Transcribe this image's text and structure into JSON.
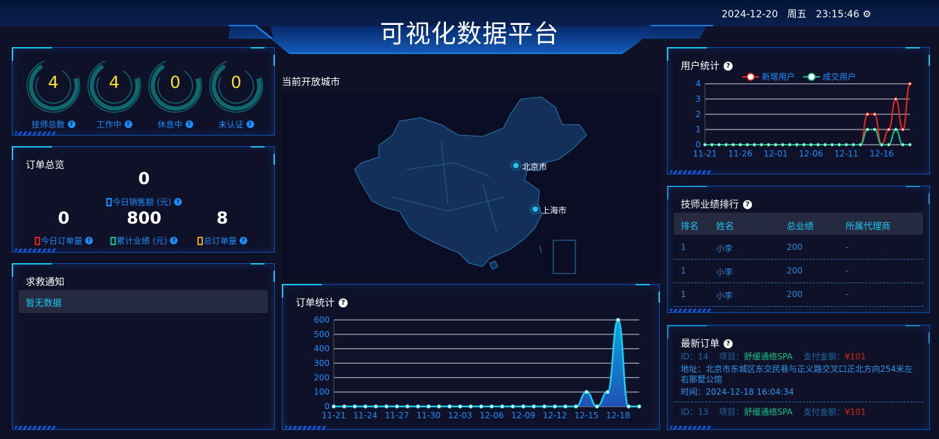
{
  "header": {
    "title": "可视化数据平台",
    "date": "2024-12-20",
    "weekday": "周五",
    "time": "23:15:46",
    "settings_icon": "gear-icon"
  },
  "technicians": {
    "items": [
      {
        "label": "技师总数",
        "value": "4"
      },
      {
        "label": "工作中",
        "value": "4"
      },
      {
        "label": "休息中",
        "value": "0"
      },
      {
        "label": "未认证",
        "value": "0"
      }
    ]
  },
  "orders_overview": {
    "title": "订单总览",
    "today_sales": {
      "value": "0",
      "label": "今日销售额 (元)",
      "color": "#1a8fff"
    },
    "stats": [
      {
        "value": "0",
        "label": "今日订单量",
        "color": "#e0221a"
      },
      {
        "value": "800",
        "label": "累计业绩 (元)",
        "color": "#16c28a"
      },
      {
        "value": "8",
        "label": "总订单量",
        "color": "#f0a020"
      }
    ]
  },
  "rescue": {
    "title": "求救通知",
    "empty": "暂无数据"
  },
  "map": {
    "title": "当前开放城市",
    "cities": [
      "北京市",
      "上海市"
    ]
  },
  "chart_data": [
    {
      "type": "area",
      "title": "订单统计",
      "x": [
        "11-21",
        "11-22",
        "11-23",
        "11-24",
        "11-25",
        "11-26",
        "11-27",
        "11-28",
        "11-29",
        "11-30",
        "12-01",
        "12-02",
        "12-03",
        "12-04",
        "12-05",
        "12-06",
        "12-07",
        "12-08",
        "12-09",
        "12-10",
        "12-11",
        "12-12",
        "12-13",
        "12-14",
        "12-15",
        "12-16",
        "12-17",
        "12-18",
        "12-19",
        "12-20"
      ],
      "xticks": [
        "11-21",
        "11-24",
        "11-27",
        "11-30",
        "12-03",
        "12-06",
        "12-09",
        "12-12",
        "12-15",
        "12-18"
      ],
      "yticks": [
        "0",
        "100",
        "200",
        "300",
        "400",
        "500",
        "600"
      ],
      "ylim": [
        0,
        600
      ],
      "values": [
        0,
        0,
        0,
        0,
        0,
        0,
        0,
        0,
        0,
        0,
        0,
        0,
        0,
        0,
        0,
        0,
        0,
        0,
        0,
        0,
        0,
        0,
        0,
        0,
        100,
        0,
        100,
        600,
        0,
        0
      ],
      "color": "#16d0f0",
      "grid": true
    },
    {
      "type": "line",
      "title": "用户统计",
      "x": [
        "11-21",
        "11-22",
        "11-23",
        "11-24",
        "11-25",
        "11-26",
        "11-27",
        "11-28",
        "11-29",
        "11-30",
        "12-01",
        "12-02",
        "12-03",
        "12-04",
        "12-05",
        "12-06",
        "12-07",
        "12-08",
        "12-09",
        "12-10",
        "12-11",
        "12-12",
        "12-13",
        "12-14",
        "12-15",
        "12-16",
        "12-17",
        "12-18",
        "12-19",
        "12-20"
      ],
      "xticks": [
        "11-21",
        "11-26",
        "12-01",
        "12-06",
        "12-11",
        "12-16"
      ],
      "yticks": [
        "0",
        "1",
        "2",
        "3",
        "4"
      ],
      "ylim": [
        0,
        4
      ],
      "legend": "top-center",
      "grid": true,
      "series": [
        {
          "name": "新增用户",
          "color": "#f0261a",
          "values": [
            0,
            0,
            0,
            0,
            0,
            0,
            0,
            0,
            0,
            0,
            0,
            0,
            0,
            0,
            0,
            0,
            0,
            0,
            0,
            0,
            0,
            0,
            0,
            2,
            2,
            0,
            1,
            3,
            1,
            4
          ]
        },
        {
          "name": "成交用户",
          "color": "#16c28a",
          "values": [
            0,
            0,
            0,
            0,
            0,
            0,
            0,
            0,
            0,
            0,
            0,
            0,
            0,
            0,
            0,
            0,
            0,
            0,
            0,
            0,
            0,
            0,
            0,
            1,
            1,
            0,
            0,
            1,
            0,
            0
          ]
        }
      ]
    }
  ],
  "ranking": {
    "title": "技师业绩排行",
    "columns": [
      "排名",
      "姓名",
      "总业绩",
      "所属代理商"
    ],
    "rows": [
      [
        "1",
        "小李",
        "200",
        "-"
      ],
      [
        "1",
        "小李",
        "200",
        "-"
      ],
      [
        "1",
        "小李",
        "200",
        "-"
      ]
    ]
  },
  "latest_orders": {
    "title": "最新订单",
    "orders": [
      {
        "id_label": "ID：14",
        "item_label": "项目：",
        "item": "舒缓通络SPA",
        "pay_label": "支付金额：",
        "pay": "¥101",
        "address": "地址：北京市东城区东交民巷与正义路交叉口正北方向254米左右那墅公馆",
        "time": "时间：2024-12-18 16:04:34"
      },
      {
        "id_label": "ID：13",
        "item_label": "项目：",
        "item": "舒缓通络SPA",
        "pay_label": "支付金额：",
        "pay": "¥101"
      }
    ]
  }
}
